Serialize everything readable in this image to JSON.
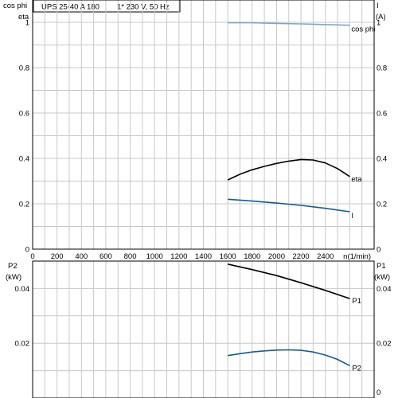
{
  "header": {
    "model": "UPS 25-40  A 180",
    "supply": "1* 230 V, 50 Hz"
  },
  "top_left_axis": {
    "label_line1": "cos phi",
    "label_line2": "eta"
  },
  "top_right_axis": {
    "label_line1": "I",
    "label_line2": "(A)"
  },
  "bottom_left_axis": {
    "label_line1": "P2",
    "label_line2": "(kW)"
  },
  "bottom_right_axis": {
    "label_line1": "P1",
    "label_line2": "(kW)"
  },
  "x_axis_label": "n(1/min)",
  "colors": {
    "black": "#000000",
    "dark_blue": "#1a5a8a",
    "light_blue": "#7ea6cc",
    "grid": "#c8c8c8"
  },
  "chart_data": [
    {
      "type": "line",
      "panel": "upper",
      "xlim": [
        0,
        2800
      ],
      "ylim": [
        0,
        1
      ],
      "x_ticks": [
        "0",
        "200",
        "400",
        "600",
        "800",
        "1000",
        "1200",
        "1400",
        "1600",
        "1800",
        "2000",
        "2200",
        "2400"
      ],
      "y_ticks_left": [
        "0",
        "0.2",
        "0.4",
        "0.6",
        "0.8"
      ],
      "y_ticks_right": [
        "0",
        "0.2",
        "0.4",
        "0.6",
        "0.8",
        "1"
      ],
      "y_top_left_tick": "1",
      "grid": true,
      "series": [
        {
          "name": "cos phi",
          "color": "#7ea6cc",
          "x": [
            1600,
            1800,
            2000,
            2200,
            2400,
            2600
          ],
          "y": [
            0.998,
            0.998,
            0.995,
            0.993,
            0.99,
            0.987
          ]
        },
        {
          "name": "eta",
          "color": "#000000",
          "x": [
            1600,
            1700,
            1800,
            1900,
            2000,
            2100,
            2200,
            2300,
            2400,
            2500,
            2600
          ],
          "y": [
            0.305,
            0.33,
            0.35,
            0.365,
            0.378,
            0.388,
            0.395,
            0.393,
            0.38,
            0.355,
            0.32
          ]
        },
        {
          "name": "I",
          "color": "#1a5a8a",
          "x": [
            1600,
            1800,
            2000,
            2200,
            2400,
            2600
          ],
          "y": [
            0.22,
            0.212,
            0.203,
            0.193,
            0.18,
            0.165
          ]
        }
      ]
    },
    {
      "type": "line",
      "panel": "lower",
      "xlim": [
        0,
        2800
      ],
      "ylim": [
        0,
        0.05
      ],
      "y_ticks_left": [
        "0.02",
        "0.04"
      ],
      "y_ticks_right": [
        "0",
        "0.02",
        "0.04"
      ],
      "grid": true,
      "series": [
        {
          "name": "P1",
          "color": "#000000",
          "x": [
            1600,
            1800,
            2000,
            2200,
            2400,
            2600
          ],
          "y": [
            0.0489,
            0.0469,
            0.0447,
            0.0421,
            0.0393,
            0.0363
          ]
        },
        {
          "name": "P2",
          "color": "#1a5a8a",
          "x": [
            1600,
            1700,
            1800,
            1900,
            2000,
            2100,
            2200,
            2300,
            2400,
            2500,
            2600
          ],
          "y": [
            0.0155,
            0.0162,
            0.0168,
            0.0172,
            0.0175,
            0.0176,
            0.0174,
            0.0168,
            0.0157,
            0.0141,
            0.0118
          ]
        }
      ]
    }
  ]
}
